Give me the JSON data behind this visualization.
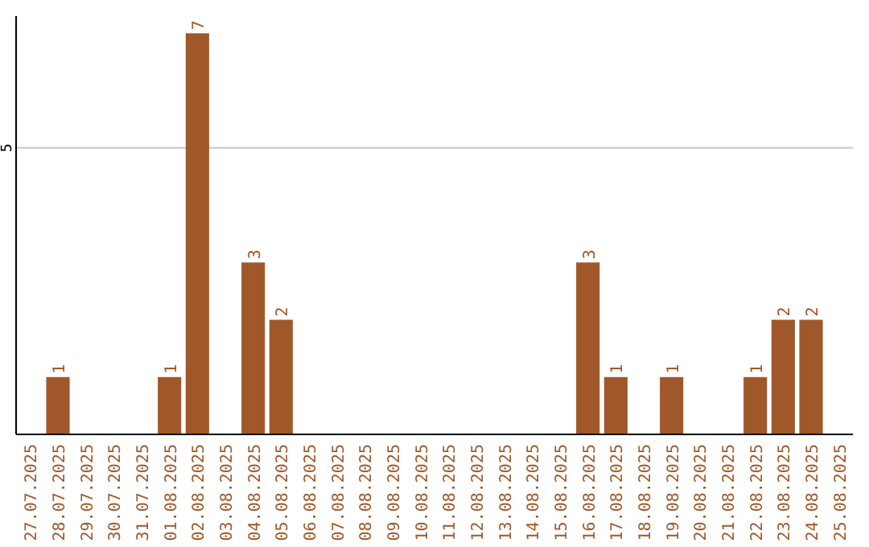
{
  "chart_data": {
    "type": "bar",
    "categories": [
      "27.07.2025",
      "28.07.2025",
      "29.07.2025",
      "30.07.2025",
      "31.07.2025",
      "01.08.2025",
      "02.08.2025",
      "03.08.2025",
      "04.08.2025",
      "05.08.2025",
      "06.08.2025",
      "07.08.2025",
      "08.08.2025",
      "09.08.2025",
      "10.08.2025",
      "11.08.2025",
      "12.08.2025",
      "13.08.2025",
      "14.08.2025",
      "15.08.2025",
      "16.08.2025",
      "17.08.2025",
      "18.08.2025",
      "19.08.2025",
      "20.08.2025",
      "21.08.2025",
      "22.08.2025",
      "23.08.2025",
      "24.08.2025",
      "25.08.2025"
    ],
    "values": [
      null,
      1,
      null,
      null,
      null,
      1,
      7,
      null,
      3,
      2,
      null,
      null,
      null,
      null,
      null,
      null,
      null,
      null,
      null,
      null,
      3,
      1,
      null,
      1,
      null,
      null,
      1,
      2,
      2,
      null
    ],
    "color": "#a0582a",
    "ylim": [
      0,
      7.3
    ],
    "yticks": [
      5
    ],
    "grid": "y",
    "data_labels": true
  }
}
